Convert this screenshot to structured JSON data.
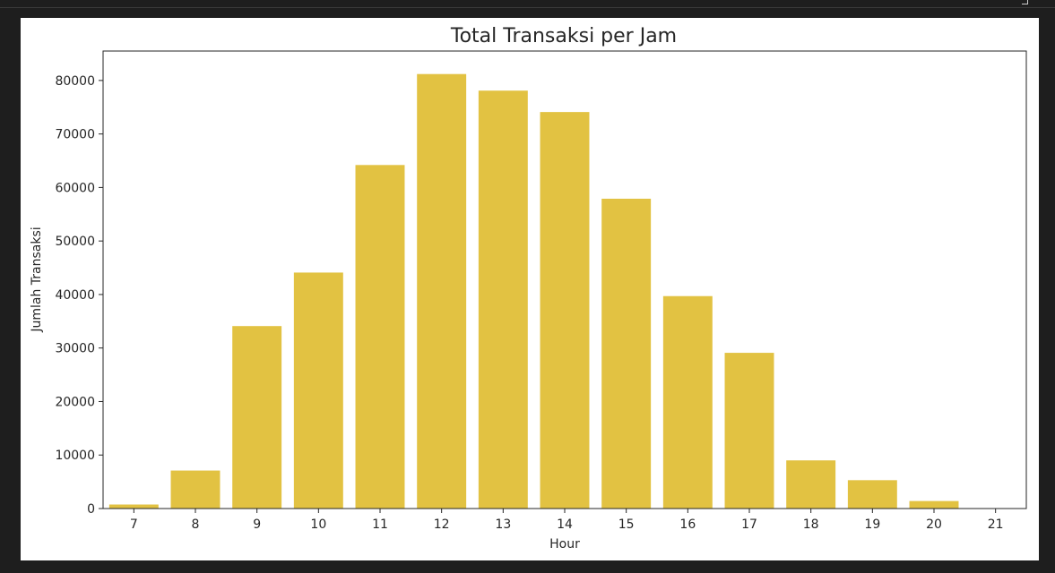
{
  "chart_data": {
    "type": "bar",
    "title": "Total Transaksi per Jam",
    "xlabel": "Hour",
    "ylabel": "Jumlah Transaksi",
    "categories": [
      "7",
      "8",
      "9",
      "10",
      "11",
      "12",
      "13",
      "14",
      "15",
      "16",
      "17",
      "18",
      "19",
      "20",
      "21"
    ],
    "values": [
      750,
      7100,
      34100,
      44100,
      64200,
      81200,
      78100,
      74100,
      57900,
      39700,
      29100,
      9000,
      5300,
      1400,
      10
    ],
    "ylim": [
      0,
      85500
    ],
    "yticks": [
      0,
      10000,
      20000,
      30000,
      40000,
      50000,
      60000,
      70000,
      80000
    ],
    "grid": false,
    "bar_color": "#e2c242"
  }
}
